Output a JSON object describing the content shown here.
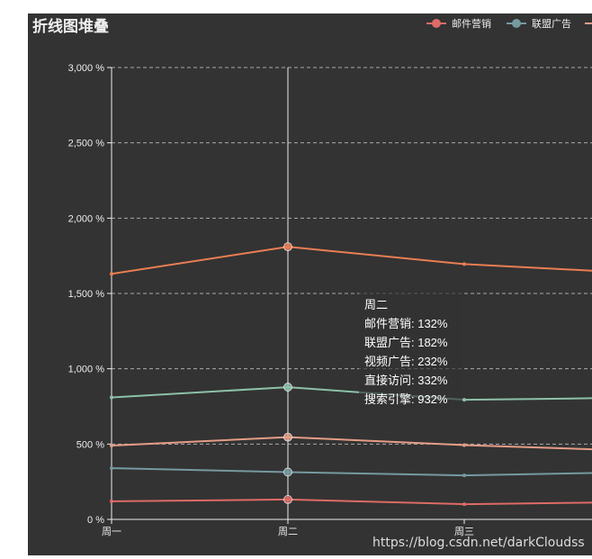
{
  "watermark": "https://blog.csdn.net/darkCloudss",
  "chart_data": {
    "type": "line",
    "title": "折线图堆叠",
    "stacked": true,
    "y_axis_unit": "%",
    "categories": [
      "周一",
      "周二",
      "周三"
    ],
    "ylim": [
      0,
      3000
    ],
    "yticks": [
      0,
      500,
      1000,
      1500,
      2000,
      2500,
      3000
    ],
    "ytick_labels": [
      "0 %",
      "500 %",
      "1,000 %",
      "1,500 %",
      "2,000 %",
      "2,500 %",
      "3,000 %"
    ],
    "grid": {
      "horizontal": true,
      "style": "dashed"
    },
    "legend": {
      "placement": "top-right",
      "items": [
        "邮件营销",
        "联盟广告"
      ]
    },
    "series": [
      {
        "name": "邮件营销",
        "color": "#dd6b66",
        "values": [
          120,
          132,
          101
        ],
        "stacked_totals": [
          120,
          132,
          101
        ]
      },
      {
        "name": "联盟广告",
        "color": "#759aa0",
        "values": [
          220,
          182,
          191
        ],
        "stacked_totals": [
          340,
          314,
          292
        ]
      },
      {
        "name": "视频广告",
        "color": "#e69d87",
        "values": [
          150,
          232,
          201
        ],
        "stacked_totals": [
          490,
          546,
          493
        ]
      },
      {
        "name": "直接访问",
        "color": "#8dc1a9",
        "values": [
          320,
          332,
          301
        ],
        "stacked_totals": [
          810,
          878,
          794
        ]
      },
      {
        "name": "搜索引擎",
        "color": "#ea7e53",
        "values": [
          820,
          932,
          901
        ],
        "stacked_totals": [
          1630,
          1810,
          1695
        ]
      }
    ],
    "highlight_index": 1,
    "tooltip": {
      "title": "周二",
      "rows": [
        "邮件营销: 132%",
        "联盟广告: 182%",
        "视频广告: 232%",
        "直接访问: 332%",
        "搜索引擎: 932%"
      ]
    }
  }
}
